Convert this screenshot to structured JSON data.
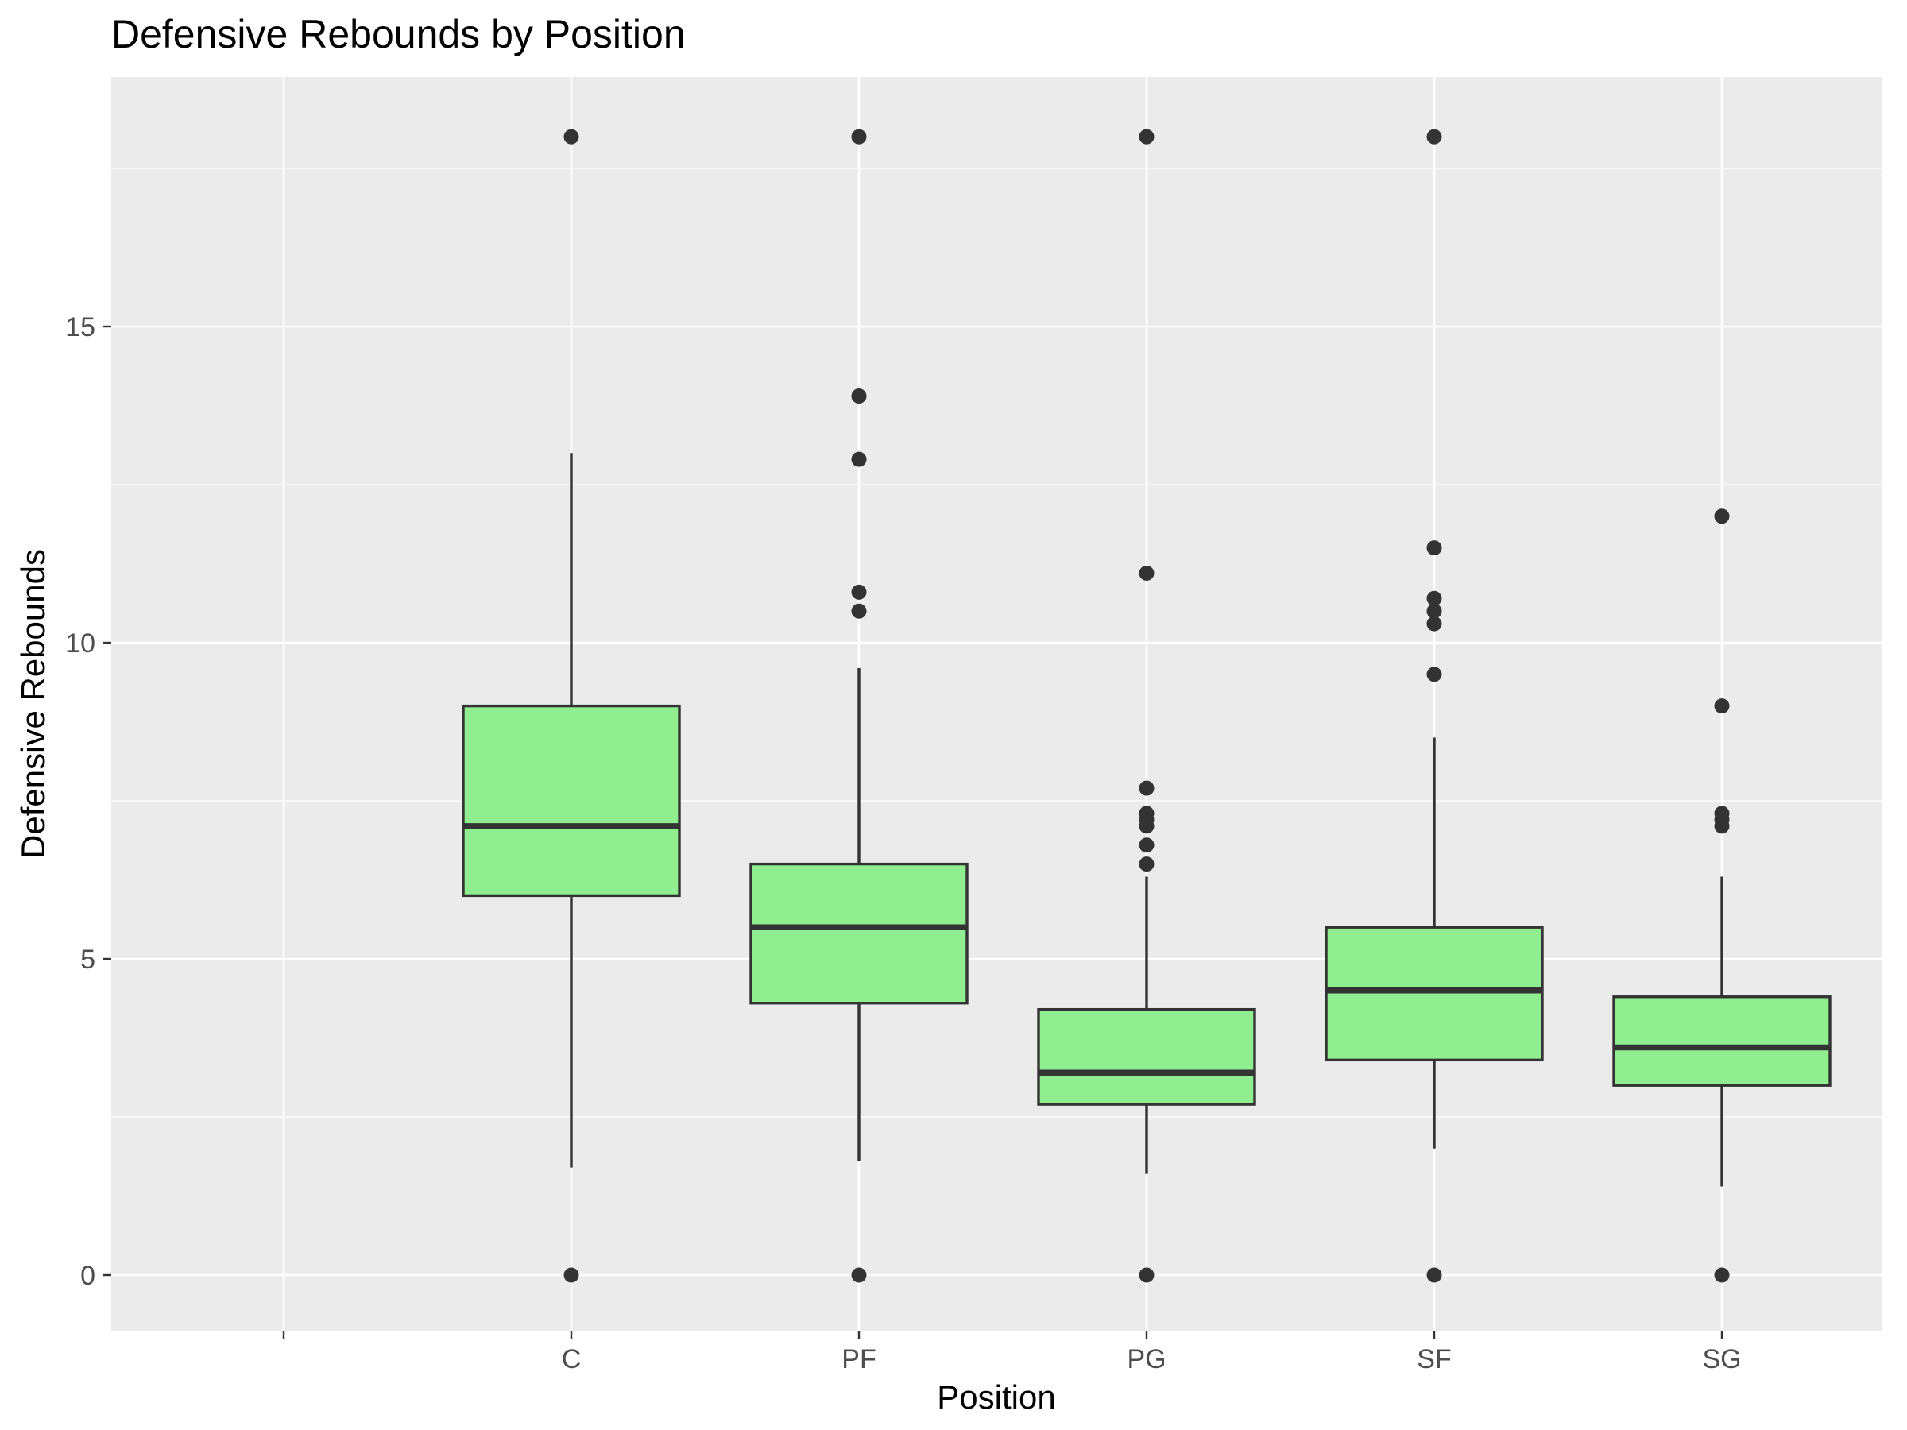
{
  "chart_data": {
    "type": "box",
    "title": "Defensive Rebounds by Position",
    "xlabel": "Position",
    "ylabel": "Defensive Rebounds",
    "categories": [
      "",
      "C",
      "PF",
      "PG",
      "SF",
      "SG"
    ],
    "ylim": [
      -1.4,
      18.5
    ],
    "yticks": [
      0,
      5,
      10,
      15
    ],
    "grid": true,
    "legend": "none",
    "colors": {
      "box_fill": "#90ee90",
      "box_stroke": "#333333",
      "panel": "#ebebeb",
      "grid": "#ffffff",
      "point": "#333333"
    },
    "boxes": [
      {
        "category": "C",
        "lower_whisker": 1.7,
        "q1": 6.0,
        "median": 7.1,
        "q3": 9.0,
        "upper_whisker": 13.0,
        "outliers": [
          0,
          18
        ]
      },
      {
        "category": "PF",
        "lower_whisker": 1.8,
        "q1": 4.3,
        "median": 5.5,
        "q3": 6.5,
        "upper_whisker": 9.6,
        "outliers": [
          0,
          10.5,
          10.8,
          12.9,
          13.9,
          18
        ]
      },
      {
        "category": "PG",
        "lower_whisker": 1.6,
        "q1": 2.7,
        "median": 3.2,
        "q3": 4.2,
        "upper_whisker": 6.3,
        "outliers": [
          0,
          6.5,
          6.8,
          7.1,
          7.2,
          7.3,
          7.7,
          11.1,
          18
        ]
      },
      {
        "category": "SF",
        "lower_whisker": 2.0,
        "q1": 3.4,
        "median": 4.5,
        "q3": 5.5,
        "upper_whisker": 8.5,
        "outliers": [
          0,
          9.5,
          10.3,
          10.5,
          10.7,
          11.5,
          18
        ]
      },
      {
        "category": "SG",
        "lower_whisker": 1.4,
        "q1": 3.0,
        "median": 3.6,
        "q3": 4.4,
        "upper_whisker": 6.3,
        "outliers": [
          0,
          7.1,
          7.2,
          7.3,
          9.0,
          12.0
        ]
      }
    ]
  }
}
